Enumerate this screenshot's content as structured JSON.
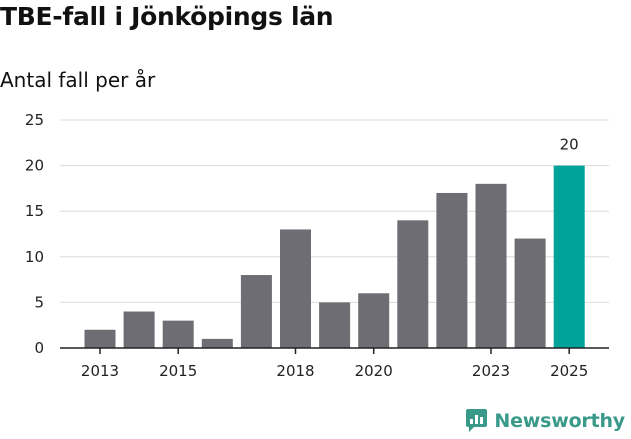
{
  "chart_data": {
    "type": "bar",
    "title": "TBE-fall i Jönköpings län",
    "subtitle": "Antal fall per år",
    "categories": [
      "2013",
      "2014",
      "2015",
      "2016",
      "2017",
      "2018",
      "2019",
      "2020",
      "2021",
      "2022",
      "2023",
      "2024",
      "2025"
    ],
    "values": [
      2,
      4,
      3,
      1,
      8,
      13,
      5,
      6,
      14,
      17,
      18,
      12,
      20
    ],
    "x_tick_labels": [
      "2013",
      "",
      "2015",
      "",
      "",
      "2018",
      "",
      "2020",
      "",
      "",
      "2023",
      "",
      "2025"
    ],
    "y_ticks": [
      "0",
      "5",
      "10",
      "15",
      "20",
      "25"
    ],
    "ylim": [
      0,
      25
    ],
    "grid": true,
    "highlight_index": 12,
    "highlight_label": "20",
    "xlabel": "",
    "ylabel": "",
    "colors": {
      "bar": "#6e6d73",
      "highlight": "#00a39a",
      "grid": "#dcdcdc",
      "axis": "#222222"
    }
  },
  "brand": {
    "name": "Newsworthy",
    "color": "#3a9a8a"
  }
}
